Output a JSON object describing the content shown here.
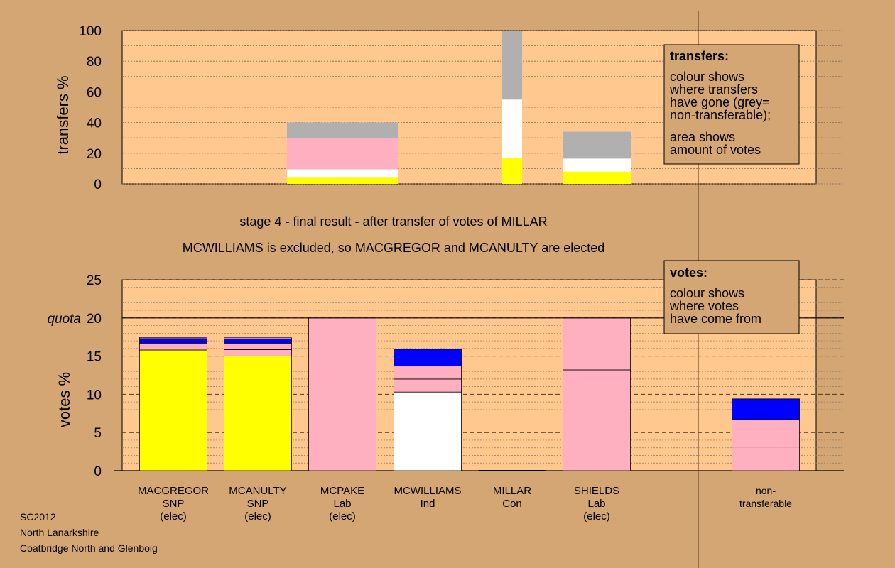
{
  "colors": {
    "background": "#d4a673",
    "plot_area": "#fec88e",
    "snp": "#ffff00",
    "lab": "#ffb0c0",
    "ind": "#ffffff",
    "con": "#0000ff",
    "non_transferable": "#b0b0b0"
  },
  "titles": {
    "stage": "stage 4 - final result - after transfer of votes of MILLAR",
    "outcome": "MCWILLIAMS is excluded, so MACGREGOR and MCANULTY are elected"
  },
  "footer": {
    "line1": "SC2012",
    "line2": "North Lanarkshire",
    "line3": "Coatbridge North and Glenboig"
  },
  "legend_transfers": {
    "title": "transfers:",
    "line1": "colour shows",
    "line2": "where transfers",
    "line3": "have gone (grey=",
    "line4": "non-transferable);",
    "line5": "area shows",
    "line6": "amount of votes"
  },
  "legend_votes": {
    "title": "votes:",
    "line1": "colour shows",
    "line2": "where votes",
    "line3": "have come from"
  },
  "chart_data": [
    {
      "type": "bar",
      "ylabel": "transfers %",
      "ylim": [
        0,
        100
      ],
      "yticks": [
        "0",
        "20",
        "40",
        "60",
        "80",
        "100"
      ],
      "bars": [
        {
          "candidate": "MCPAKE",
          "width_fraction": 0.39,
          "segments": [
            {
              "party": "snp",
              "from": 0,
              "to": 4.5
            },
            {
              "party": "ind",
              "from": 4.5,
              "to": 9.5
            },
            {
              "party": "lab",
              "from": 9.5,
              "to": 30
            },
            {
              "party": "non_transferable",
              "from": 30,
              "to": 40
            }
          ]
        },
        {
          "candidate": "MILLAR",
          "width_fraction": 0.07,
          "segments": [
            {
              "party": "snp",
              "from": 0,
              "to": 17
            },
            {
              "party": "ind",
              "from": 17,
              "to": 55
            },
            {
              "party": "non_transferable",
              "from": 55,
              "to": 100
            }
          ]
        },
        {
          "candidate": "SHIELDS",
          "width_fraction": 0.24,
          "segments": [
            {
              "party": "snp",
              "from": 0,
              "to": 8
            },
            {
              "party": "ind",
              "from": 8,
              "to": 16.5
            },
            {
              "party": "non_transferable",
              "from": 16.5,
              "to": 34
            }
          ]
        }
      ]
    },
    {
      "type": "bar",
      "ylabel": "votes %",
      "ylim": [
        0,
        25
      ],
      "yticks": [
        "0",
        "5",
        "10",
        "15",
        "20",
        "25"
      ],
      "quota": 20,
      "quota_label": "quota",
      "bars": [
        {
          "candidate": "MACGREGOR",
          "party": "SNP",
          "status": "(elec)",
          "segments": [
            {
              "party": "snp",
              "from": 0,
              "to": 15.8
            },
            {
              "party": "lab",
              "from": 15.8,
              "to": 16.3
            },
            {
              "party": "lab",
              "from": 16.3,
              "to": 16.7
            },
            {
              "party": "con",
              "from": 16.7,
              "to": 17.3
            },
            {
              "party": "lab",
              "from": 17.3,
              "to": 17.45
            }
          ]
        },
        {
          "candidate": "MCANULTY",
          "party": "SNP",
          "status": "(elec)",
          "segments": [
            {
              "party": "snp",
              "from": 0,
              "to": 15
            },
            {
              "party": "lab",
              "from": 15,
              "to": 15.85
            },
            {
              "party": "lab",
              "from": 15.85,
              "to": 16.7
            },
            {
              "party": "con",
              "from": 16.7,
              "to": 17.25
            },
            {
              "party": "lab",
              "from": 17.25,
              "to": 17.4
            }
          ]
        },
        {
          "candidate": "MCPAKE",
          "party": "Lab",
          "status": "(elec)",
          "segments": [
            {
              "party": "lab",
              "from": 0,
              "to": 20
            }
          ]
        },
        {
          "candidate": "MCWILLIAMS",
          "party": "Ind",
          "status": "",
          "segments": [
            {
              "party": "ind",
              "from": 0,
              "to": 10.3
            },
            {
              "party": "lab",
              "from": 10.3,
              "to": 12
            },
            {
              "party": "lab",
              "from": 12,
              "to": 13.7
            },
            {
              "party": "con",
              "from": 13.7,
              "to": 15.9
            }
          ]
        },
        {
          "candidate": "MILLAR",
          "party": "Con",
          "status": "",
          "segments": []
        },
        {
          "candidate": "SHIELDS",
          "party": "Lab",
          "status": "(elec)",
          "segments": [
            {
              "party": "lab",
              "from": 0,
              "to": 13.2
            },
            {
              "party": "lab",
              "from": 13.2,
              "to": 20
            }
          ]
        },
        {
          "candidate": "non-",
          "party": "transferable",
          "status": "",
          "separate": true,
          "segments": [
            {
              "party": "lab",
              "from": 0,
              "to": 3.1
            },
            {
              "party": "lab",
              "from": 3.1,
              "to": 6.7
            },
            {
              "party": "con",
              "from": 6.7,
              "to": 9.4
            }
          ]
        }
      ]
    }
  ]
}
